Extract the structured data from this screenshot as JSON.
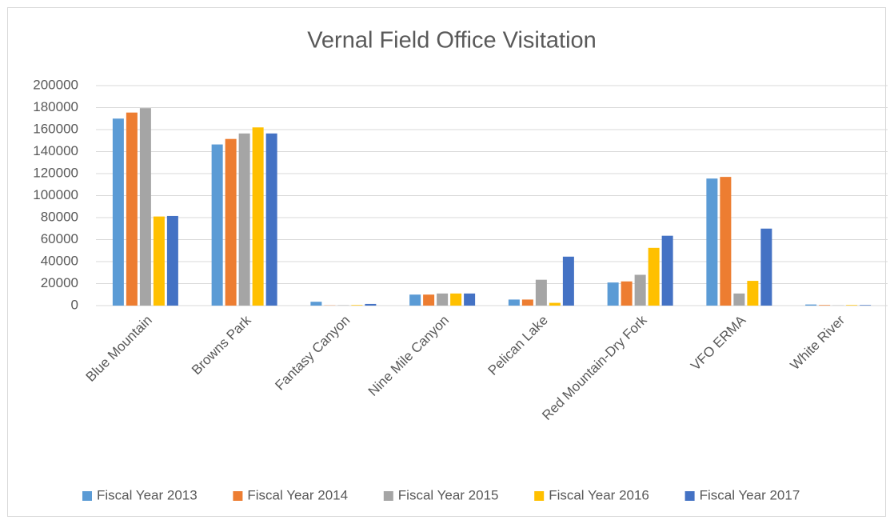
{
  "chart_data": {
    "type": "bar",
    "title": "Vernal Field Office Visitation",
    "categories": [
      "Blue Mountain",
      "Browns Park",
      "Fantasy Canyon",
      "Nine Mile Canyon",
      "Pelican Lake",
      "Red Mountain-Dry Fork",
      "VFO ERMA",
      "White River"
    ],
    "series": [
      {
        "name": "Fiscal Year 2013",
        "color": "#5b9bd5",
        "values": [
          170000,
          146500,
          3500,
          10000,
          5500,
          21000,
          115500,
          1000
        ]
      },
      {
        "name": "Fiscal Year 2014",
        "color": "#ed7d31",
        "values": [
          175500,
          151500,
          200,
          10000,
          5500,
          22000,
          117000,
          500
        ]
      },
      {
        "name": "Fiscal Year 2015",
        "color": "#a5a5a5",
        "values": [
          179500,
          156500,
          300,
          11000,
          23500,
          28000,
          11000,
          200
        ]
      },
      {
        "name": "Fiscal Year 2016",
        "color": "#ffc000",
        "values": [
          81000,
          162000,
          500,
          11000,
          2500,
          52500,
          22500,
          500
        ]
      },
      {
        "name": "Fiscal Year 2017",
        "color": "#4472c4",
        "values": [
          81500,
          156500,
          1500,
          11000,
          44500,
          63500,
          70000,
          500
        ]
      }
    ],
    "ylim": [
      0,
      200000
    ],
    "yticks": [
      0,
      20000,
      40000,
      60000,
      80000,
      100000,
      120000,
      140000,
      160000,
      180000,
      200000
    ],
    "grid": true,
    "legend": "bottom"
  }
}
